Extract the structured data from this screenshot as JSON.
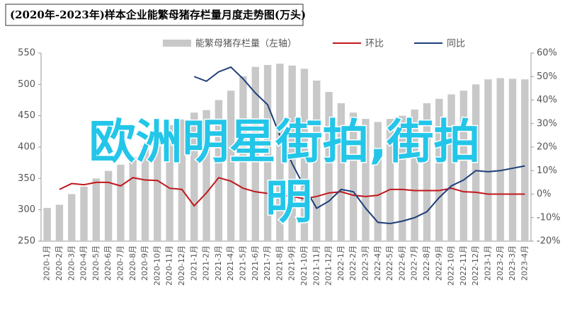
{
  "chart_data": {
    "type": "bar-line",
    "title": "(2020年-2023年)样本企业能繁母猪存栏量月度走势图(万头)",
    "overlay": [
      "欧洲明星街拍,街拍",
      "明"
    ],
    "categories": [
      "2020-1月",
      "2020-2月",
      "2020-3月",
      "2020-4月",
      "2020-5月",
      "2020-6月",
      "2020-7月",
      "2020-8月",
      "2020-9月",
      "2020-10月",
      "2020-11月",
      "2020-12月",
      "2021-1月",
      "2021-2月",
      "2021-3月",
      "2021-4月",
      "2021-5月",
      "2021-6月",
      "2021-7月",
      "2021-8月",
      "2021-9月",
      "2021-10月",
      "2021-11月",
      "2021-12月",
      "2022-1月",
      "2022-2月",
      "2022-3月",
      "2022-4月",
      "2022-5月",
      "2022-6月",
      "2022-7月",
      "2022-8月",
      "2022-9月",
      "2022-10月",
      "2022-11月",
      "2022-12月",
      "2023-1月",
      "2023-2月",
      "2023-3月",
      "2023-4月"
    ],
    "series": [
      {
        "name": "能繁母猪存栏量（左轴）",
        "kind": "bar",
        "color": "#c8c8c8",
        "values": [
          303,
          308,
          325,
          337,
          350,
          362,
          372,
          384,
          403,
          420,
          435,
          444,
          455,
          459,
          475,
          490,
          513,
          528,
          531,
          533,
          530,
          525,
          506,
          488,
          470,
          455,
          445,
          440,
          445,
          450,
          460,
          470,
          477,
          484,
          490,
          500,
          508,
          510,
          509,
          508
        ]
      },
      {
        "name": "环比",
        "kind": "line",
        "axis": "y2",
        "color": "#c0171c",
        "values": [
          null,
          2,
          4.5,
          4,
          5,
          5,
          3.5,
          7,
          6,
          5.8,
          2.5,
          2,
          -5,
          0.5,
          7,
          5.5,
          2.5,
          1,
          0.3,
          -0.3,
          -1,
          -2,
          -1,
          0.5,
          1,
          -0.5,
          -1,
          -0.5,
          2,
          2,
          1.5,
          1.5,
          1.5,
          2.5,
          1,
          0.8,
          0,
          0,
          0,
          0
        ]
      },
      {
        "name": "同比",
        "kind": "line",
        "axis": "y2",
        "color": "#1f3f7a",
        "values": [
          null,
          null,
          null,
          null,
          null,
          null,
          null,
          null,
          null,
          null,
          null,
          null,
          50,
          48,
          52,
          54,
          49,
          43,
          38,
          25,
          13,
          3,
          -6,
          -3,
          2,
          1,
          -6,
          -12,
          -12.5,
          -11.5,
          -10,
          -7.5,
          -1.5,
          3.5,
          6,
          10,
          9.5,
          10,
          11,
          12
        ]
      }
    ],
    "ylim": [
      250,
      550
    ],
    "yticks": [
      250,
      300,
      350,
      400,
      450,
      500,
      550
    ],
    "y2lim": [
      -20,
      60
    ],
    "y2ticks": [
      {
        "value": -20,
        "label": "-20%"
      },
      {
        "value": -10,
        "label": "-10%"
      },
      {
        "value": 0,
        "label": "0%"
      },
      {
        "value": 10,
        "label": "10%"
      },
      {
        "value": 20,
        "label": "20%"
      },
      {
        "value": 30,
        "label": "30%"
      },
      {
        "value": 40,
        "label": "40%"
      },
      {
        "value": 50,
        "label": "50%"
      },
      {
        "value": 60,
        "label": "60%"
      }
    ]
  }
}
